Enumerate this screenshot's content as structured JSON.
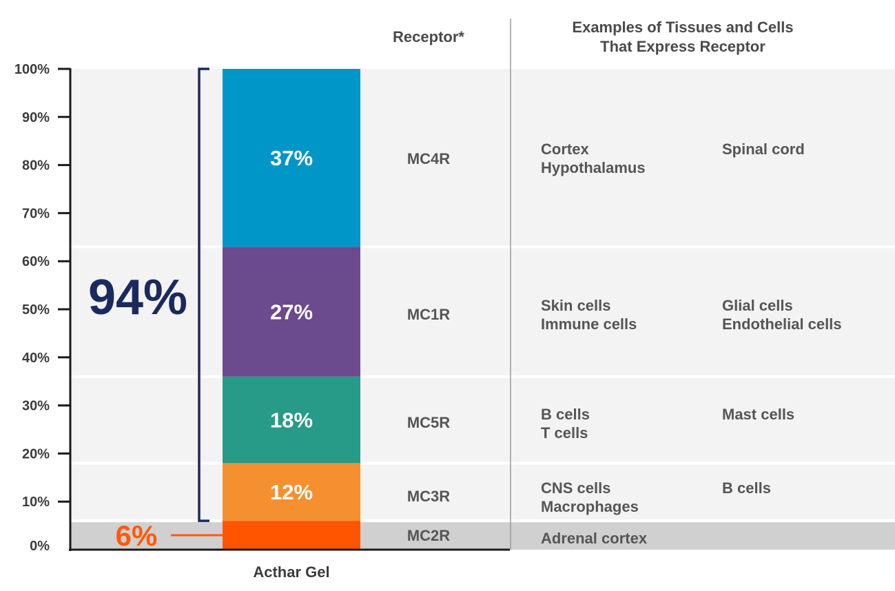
{
  "chart_data": {
    "type": "bar",
    "stacked": true,
    "xlabel": "Acthar Gel",
    "ylabel": "",
    "ylim": [
      0,
      100
    ],
    "yticks": [
      "0%",
      "10%",
      "20%",
      "30%",
      "40%",
      "50%",
      "60%",
      "70%",
      "80%",
      "90%",
      "100%"
    ],
    "headers": {
      "receptor": "Receptor*",
      "tissues_line1": "Examples of Tissues and Cells",
      "tissues_line2": "That Express Receptor"
    },
    "series": [
      {
        "receptor": "MC2R",
        "value": 6,
        "value_label": "",
        "color": "#ff5500",
        "band_color": "#d0d0d0",
        "tissues_col1": [
          "Adrenal cortex"
        ],
        "tissues_col2": []
      },
      {
        "receptor": "MC3R",
        "value": 12,
        "value_label": "12%",
        "color": "#f59031",
        "band_color": "#f3f3f3",
        "tissues_col1": [
          "CNS cells",
          "Macrophages"
        ],
        "tissues_col2": [
          "B cells"
        ]
      },
      {
        "receptor": "MC5R",
        "value": 18,
        "value_label": "18%",
        "color": "#279a88",
        "band_color": "#f3f3f3",
        "tissues_col1": [
          "B cells",
          "T cells"
        ],
        "tissues_col2": [
          "Mast cells"
        ]
      },
      {
        "receptor": "MC1R",
        "value": 27,
        "value_label": "27%",
        "color": "#6b4a8e",
        "band_color": "#f3f3f3",
        "tissues_col1": [
          "Skin cells",
          "Immune cells"
        ],
        "tissues_col2": [
          "Glial cells",
          "Endothelial cells"
        ]
      },
      {
        "receptor": "MC4R",
        "value": 37,
        "value_label": "37%",
        "color": "#0196c8",
        "band_color": "#f3f3f3",
        "tissues_col1": [
          "Cortex",
          "Hypothalamus"
        ],
        "tissues_col2": [
          "Spinal cord"
        ]
      }
    ],
    "annotations": {
      "bracket_total": "94%",
      "bracket_color": "#1b2a5e",
      "bottom_label": "6%",
      "bottom_color": "#ff5a0a"
    }
  }
}
